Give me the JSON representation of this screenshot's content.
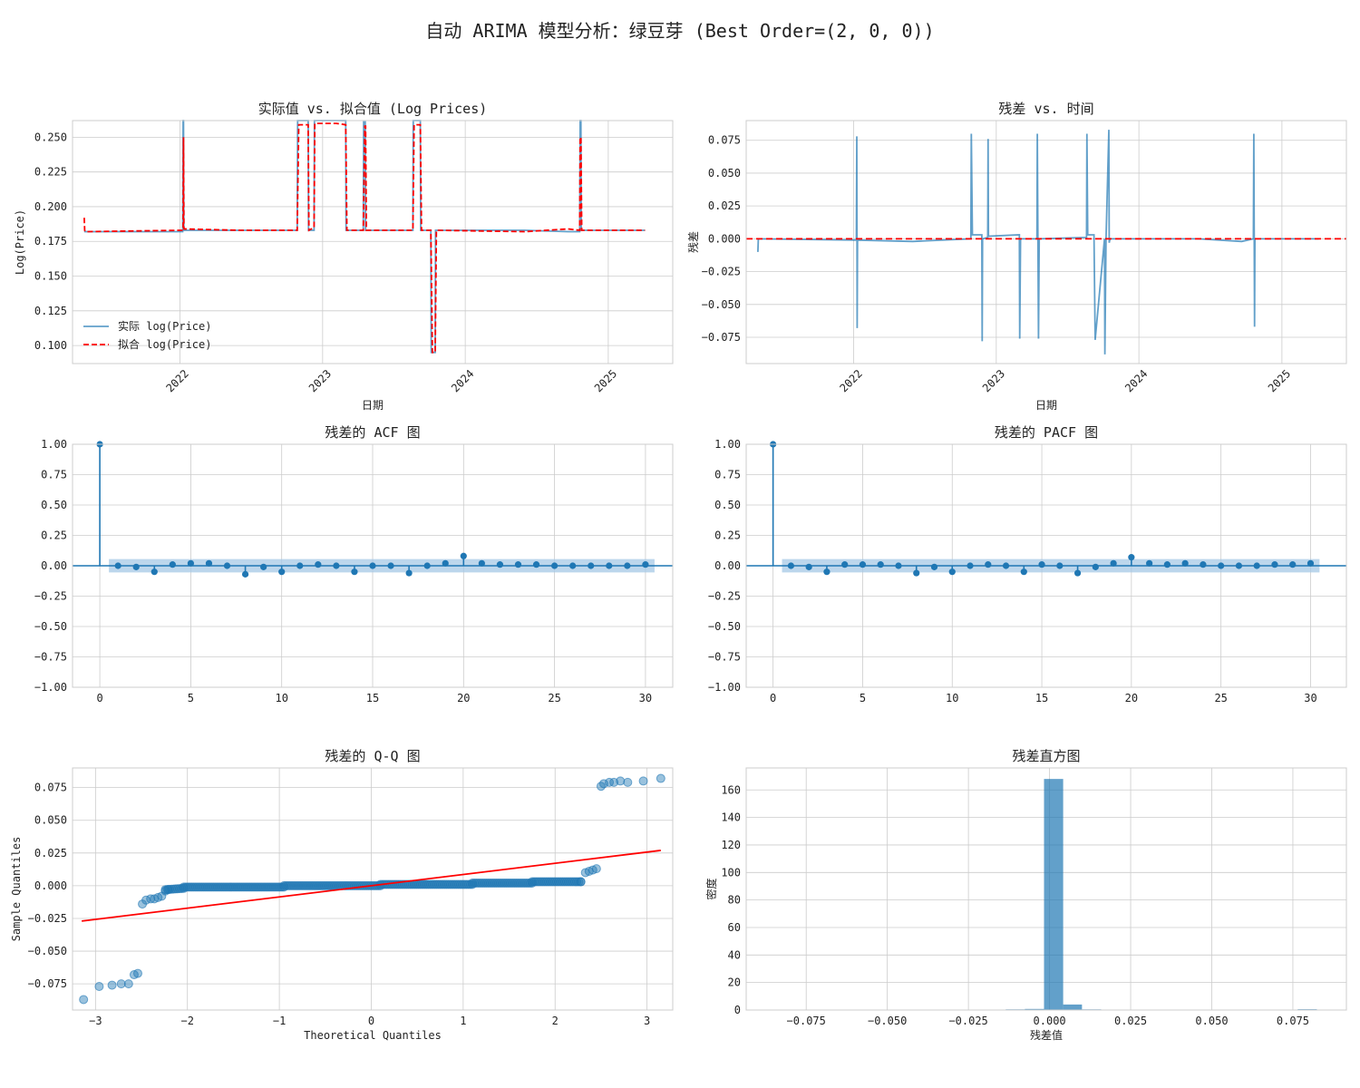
{
  "suptitle": "自动 ARIMA 模型分析：绿豆芽 (Best Order=(2, 0, 0))",
  "colors": {
    "actual": "#1f77b4",
    "fitted": "#ff0000",
    "qqline": "#ff0000",
    "grid": "#cccccc",
    "ci_band": "#a6c8e6"
  },
  "chart_data": [
    {
      "id": "fit",
      "type": "line",
      "title": "实际值 vs. 拟合值 (Log Prices)",
      "xlabel": "日期",
      "ylabel": "Log(Price)",
      "ylim": [
        0.087,
        0.262
      ],
      "xlim": [
        "2021-04-01",
        "2025-06-15"
      ],
      "yticks": [
        "0.100",
        "0.125",
        "0.150",
        "0.175",
        "0.200",
        "0.225",
        "0.250"
      ],
      "xticks": [
        "2022",
        "2023",
        "2024",
        "2025"
      ],
      "legend": {
        "position": "lower-left",
        "entries": [
          "实际 log(Price)",
          "拟合 log(Price)"
        ]
      },
      "series": [
        {
          "name": "实际 log(Price)",
          "style": "solid",
          "x": [
            "2021-05-01",
            "2022-01-08",
            "2022-01-09",
            "2022-01-10",
            "2022-01-11",
            "2022-06-01",
            "2022-10-28",
            "2022-10-29",
            "2022-11-25",
            "2022-11-26",
            "2022-12-10",
            "2022-12-11",
            "2023-02-05",
            "2023-03-01",
            "2023-03-02",
            "2023-04-15",
            "2023-04-16",
            "2023-04-20",
            "2023-04-21",
            "2023-08-20",
            "2023-08-21",
            "2023-09-08",
            "2023-09-09",
            "2023-10-05",
            "2023-10-06",
            "2023-10-16",
            "2023-10-17",
            "2024-06-01",
            "2024-09-20",
            "2024-10-20",
            "2024-10-21",
            "2024-10-23",
            "2024-10-24",
            "2025-04-05"
          ],
          "y": [
            0.182,
            0.182,
            0.262,
            0.262,
            0.183,
            0.183,
            0.183,
            0.262,
            0.262,
            0.183,
            0.183,
            0.262,
            0.262,
            0.262,
            0.183,
            0.183,
            0.261,
            0.261,
            0.183,
            0.183,
            0.262,
            0.262,
            0.183,
            0.183,
            0.095,
            0.095,
            0.183,
            0.183,
            0.182,
            0.182,
            0.262,
            0.262,
            0.183,
            0.183
          ]
        },
        {
          "name": "拟合 log(Price)",
          "style": "dashed",
          "x": [
            "2021-05-01",
            "2021-05-02",
            "2021-05-03",
            "2022-01-08",
            "2022-01-09",
            "2022-01-10",
            "2022-01-11",
            "2022-06-01",
            "2022-10-28",
            "2022-11-01",
            "2022-11-25",
            "2022-11-27",
            "2022-12-10",
            "2022-12-12",
            "2023-02-05",
            "2023-03-01",
            "2023-03-04",
            "2023-04-15",
            "2023-04-19",
            "2023-04-21",
            "2023-04-23",
            "2023-08-20",
            "2023-08-23",
            "2023-09-08",
            "2023-09-11",
            "2023-10-05",
            "2023-10-09",
            "2023-10-16",
            "2023-10-19",
            "2024-06-01",
            "2024-09-20",
            "2024-10-20",
            "2024-10-21",
            "2024-10-23",
            "2024-10-25",
            "2025-04-05"
          ],
          "y": [
            0.192,
            0.183,
            0.182,
            0.183,
            0.184,
            0.25,
            0.184,
            0.183,
            0.183,
            0.259,
            0.259,
            0.183,
            0.185,
            0.26,
            0.26,
            0.259,
            0.183,
            0.183,
            0.258,
            0.258,
            0.183,
            0.183,
            0.259,
            0.259,
            0.183,
            0.183,
            0.095,
            0.095,
            0.183,
            0.182,
            0.184,
            0.183,
            0.25,
            0.25,
            0.183,
            0.183
          ]
        }
      ]
    },
    {
      "id": "resid",
      "type": "line",
      "title": "残差 vs. 时间",
      "xlabel": "日期",
      "ylabel": "残差",
      "ylim": [
        -0.095,
        0.09
      ],
      "xlim": [
        "2021-04-01",
        "2025-06-15"
      ],
      "yticks": [
        "−0.075",
        "−0.050",
        "−0.025",
        "0.000",
        "0.025",
        "0.050",
        "0.075"
      ],
      "xticks": [
        "2022",
        "2023",
        "2024",
        "2025"
      ],
      "series": [
        {
          "name": "",
          "style": "solid",
          "x": [
            "2021-05-01",
            "2021-05-02",
            "2022-01-08",
            "2022-01-09",
            "2022-01-10",
            "2022-01-11",
            "2022-06-01",
            "2022-10-28",
            "2022-10-29",
            "2022-11-01",
            "2022-11-25",
            "2022-11-26",
            "2022-11-27",
            "2022-12-10",
            "2022-12-11",
            "2022-12-12",
            "2023-03-01",
            "2023-03-02",
            "2023-03-04",
            "2023-04-15",
            "2023-04-16",
            "2023-04-19",
            "2023-04-21",
            "2023-08-20",
            "2023-08-21",
            "2023-08-23",
            "2023-09-08",
            "2023-09-11",
            "2023-10-05",
            "2023-10-06",
            "2023-10-09",
            "2023-10-16",
            "2023-10-17",
            "2023-10-19",
            "2024-06-01",
            "2024-09-20",
            "2024-10-20",
            "2024-10-21",
            "2024-10-23",
            "2024-10-24",
            "2025-04-05"
          ],
          "y": [
            -0.01,
            0.0,
            -0.001,
            0.078,
            -0.068,
            -0.001,
            -0.002,
            0.0,
            0.08,
            0.003,
            0.003,
            -0.078,
            0.0,
            0.001,
            0.076,
            0.002,
            0.003,
            -0.076,
            0.0,
            0.0,
            0.08,
            -0.076,
            0.0,
            0.001,
            0.08,
            0.003,
            0.003,
            -0.077,
            0.0,
            -0.088,
            0.0,
            0.083,
            -0.003,
            0.0,
            0.0,
            -0.002,
            0.0,
            0.08,
            -0.067,
            0.0,
            0.0
          ]
        },
        {
          "name": "",
          "style": "dashed-zero",
          "x": [
            "2021-04-01",
            "2025-06-15"
          ],
          "y": [
            0,
            0
          ]
        }
      ]
    },
    {
      "id": "acf",
      "type": "stem",
      "title": "残差的 ACF 图",
      "ylim": [
        -1.0,
        1.0
      ],
      "xlim": [
        -1.5,
        31.5
      ],
      "yticks": [
        "−1.00",
        "−0.75",
        "−0.50",
        "−0.25",
        "0.00",
        "0.25",
        "0.50",
        "0.75",
        "1.00"
      ],
      "xticks": [
        "0",
        "5",
        "10",
        "15",
        "20",
        "25",
        "30"
      ],
      "confidence": 0.055,
      "lags": [
        0,
        1,
        2,
        3,
        4,
        5,
        6,
        7,
        8,
        9,
        10,
        11,
        12,
        13,
        14,
        15,
        16,
        17,
        18,
        19,
        20,
        21,
        22,
        23,
        24,
        25,
        26,
        27,
        28,
        29,
        30
      ],
      "values": [
        1.0,
        0.0,
        -0.01,
        -0.05,
        0.01,
        0.02,
        0.02,
        0.0,
        -0.07,
        -0.01,
        -0.05,
        0.0,
        0.01,
        0.0,
        -0.05,
        0.0,
        0.0,
        -0.06,
        0.0,
        0.02,
        0.08,
        0.02,
        0.01,
        0.01,
        0.01,
        0.0,
        0.0,
        0.0,
        0.0,
        0.0,
        0.01
      ]
    },
    {
      "id": "pacf",
      "type": "stem",
      "title": "残差的 PACF 图",
      "ylim": [
        -1.0,
        1.0
      ],
      "xlim": [
        -1.5,
        32.0
      ],
      "yticks": [
        "−1.00",
        "−0.75",
        "−0.50",
        "−0.25",
        "0.00",
        "0.25",
        "0.50",
        "0.75",
        "1.00"
      ],
      "xticks": [
        "0",
        "5",
        "10",
        "15",
        "20",
        "25",
        "30"
      ],
      "confidence": 0.055,
      "lags": [
        0,
        1,
        2,
        3,
        4,
        5,
        6,
        7,
        8,
        9,
        10,
        11,
        12,
        13,
        14,
        15,
        16,
        17,
        18,
        19,
        20,
        21,
        22,
        23,
        24,
        25,
        26,
        27,
        28,
        29,
        30
      ],
      "values": [
        1.0,
        0.0,
        -0.01,
        -0.05,
        0.01,
        0.01,
        0.01,
        0.0,
        -0.06,
        -0.01,
        -0.05,
        0.0,
        0.01,
        0.0,
        -0.05,
        0.01,
        0.0,
        -0.06,
        -0.01,
        0.02,
        0.07,
        0.02,
        0.01,
        0.02,
        0.01,
        0.0,
        0.0,
        0.0,
        0.01,
        0.01,
        0.02
      ]
    },
    {
      "id": "qq",
      "type": "scatter",
      "title": "残差的 Q-Q 图",
      "xlabel": "Theoretical Quantiles",
      "ylabel": "Sample Quantiles",
      "xlim": [
        -3.25,
        3.28
      ],
      "ylim": [
        -0.095,
        0.09
      ],
      "xticks": [
        "−3",
        "−2",
        "−1",
        "0",
        "1",
        "2",
        "3"
      ],
      "yticks": [
        "−0.075",
        "−0.050",
        "−0.025",
        "0.000",
        "0.025",
        "0.050",
        "0.075"
      ],
      "outliers": {
        "x": [
          -3.13,
          -2.96,
          -2.82,
          -2.72,
          -2.64,
          -2.58,
          -2.54,
          -2.49,
          -2.45,
          -2.4,
          -2.36,
          -2.32,
          -2.28,
          -2.24,
          -2.21,
          2.28,
          2.33,
          2.37,
          2.41,
          2.45,
          2.5,
          2.53,
          2.59,
          2.64,
          2.71,
          2.79,
          2.96,
          3.15
        ],
        "y": [
          -0.087,
          -0.077,
          -0.076,
          -0.075,
          -0.075,
          -0.068,
          -0.067,
          -0.014,
          -0.011,
          -0.01,
          -0.01,
          -0.009,
          -0.008,
          -0.004,
          -0.003,
          0.003,
          0.01,
          0.011,
          0.012,
          0.013,
          0.076,
          0.078,
          0.079,
          0.079,
          0.08,
          0.079,
          0.08,
          0.082
        ]
      },
      "bulk": [
        {
          "x": [
            -2.24,
            -2.04
          ],
          "y": [
            -0.003,
            -0.002
          ]
        },
        {
          "x": [
            -2.04,
            -0.95
          ],
          "y": [
            -0.001,
            -0.001
          ]
        },
        {
          "x": [
            -0.95,
            0.1
          ],
          "y": [
            0.0,
            0.0
          ]
        },
        {
          "x": [
            0.1,
            1.1
          ],
          "y": [
            0.001,
            0.001
          ]
        },
        {
          "x": [
            1.1,
            1.75
          ],
          "y": [
            0.002,
            0.002
          ]
        },
        {
          "x": [
            1.75,
            2.28
          ],
          "y": [
            0.003,
            0.003
          ]
        }
      ],
      "line": {
        "x": [
          -3.15,
          3.15
        ],
        "y": [
          -0.027,
          0.027
        ]
      }
    },
    {
      "id": "hist",
      "type": "bar",
      "title": "残差直方图",
      "xlabel": "残差值",
      "ylabel": "密度",
      "xlim": [
        -0.0935,
        0.0915
      ],
      "ylim": [
        0,
        176
      ],
      "xticks": [
        "−0.075",
        "−0.050",
        "−0.025",
        "0.000",
        "0.025",
        "0.050",
        "0.075"
      ],
      "yticks": [
        "0",
        "20",
        "40",
        "60",
        "80",
        "100",
        "120",
        "140",
        "160"
      ],
      "bins": [
        {
          "x0": -0.0135,
          "x1": -0.0076,
          "height": 0.5
        },
        {
          "x0": -0.0076,
          "x1": -0.0017,
          "height": 0.8
        },
        {
          "x0": -0.0017,
          "x1": 0.0042,
          "height": 168
        },
        {
          "x0": 0.0042,
          "x1": 0.01,
          "height": 4
        },
        {
          "x0": 0.01,
          "x1": 0.0159,
          "height": 0.5
        },
        {
          "x0": 0.0765,
          "x1": 0.0824,
          "height": 0.6
        }
      ]
    }
  ]
}
